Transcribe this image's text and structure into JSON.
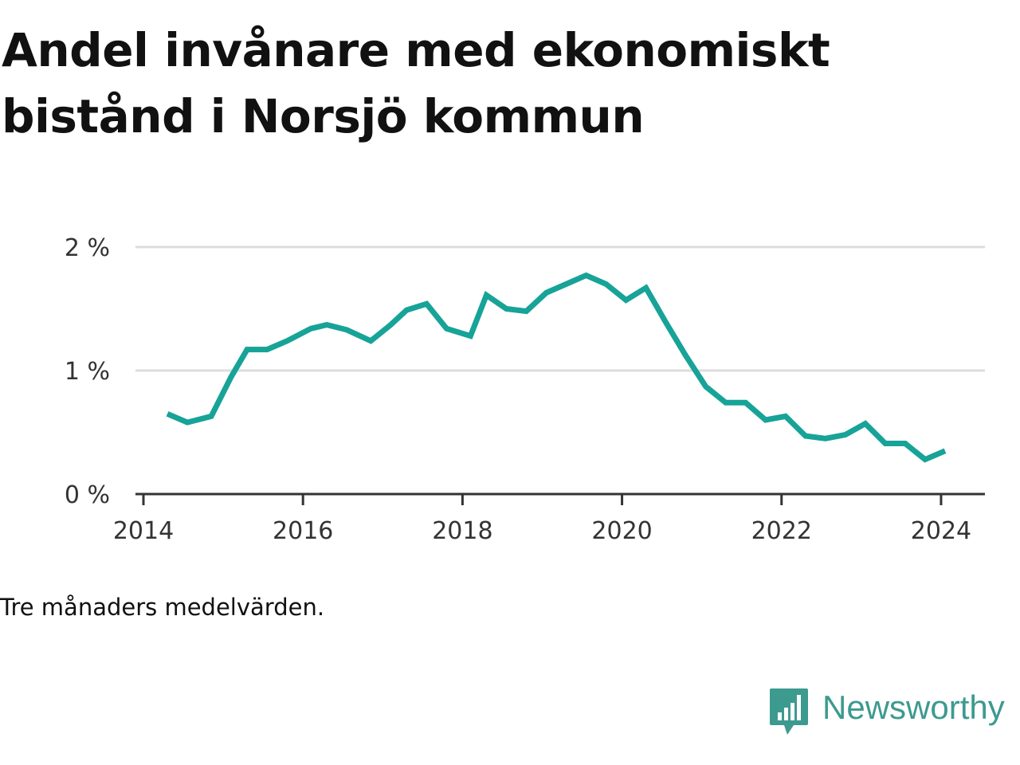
{
  "title": "Andel invånare med ekonomiskt bistånd i Norsjö kommun",
  "note": "Tre månaders medelvärden.",
  "brand": {
    "name": "Newsworthy",
    "icon": "newsworthy-logo-icon",
    "color": "#3d9a8f"
  },
  "colors": {
    "line": "#17a398",
    "grid": "#dddddd",
    "axis": "#333333"
  },
  "chart_data": {
    "type": "line",
    "title": "Andel invånare med ekonomiskt bistånd i Norsjö kommun",
    "xlabel": "",
    "ylabel": "",
    "xlim": [
      2013.9,
      2024.55
    ],
    "ylim": [
      0,
      2
    ],
    "grid": true,
    "legend": "none",
    "x_ticks": [
      2014,
      2016,
      2018,
      2020,
      2022,
      2024
    ],
    "x_tick_labels": [
      "2014",
      "2016",
      "2018",
      "2020",
      "2022",
      "2024"
    ],
    "y_ticks": [
      0,
      1,
      2
    ],
    "y_tick_labels": [
      "0 %",
      "1 %",
      "2 %"
    ],
    "series": [
      {
        "x": [
          2014.3,
          2014.55,
          2014.85,
          2015.1,
          2015.3,
          2015.55,
          2015.8,
          2016.1,
          2016.3,
          2016.55,
          2016.85,
          2017.1,
          2017.3,
          2017.55,
          2017.8,
          2018.1,
          2018.3,
          2018.55,
          2018.8,
          2019.05,
          2019.3,
          2019.55,
          2019.8,
          2020.05,
          2020.3,
          2020.55,
          2020.8,
          2021.05,
          2021.3,
          2021.55,
          2021.8,
          2022.05,
          2022.3,
          2022.55,
          2022.8,
          2023.05,
          2023.3,
          2023.55,
          2023.8,
          2024.05
        ],
        "values": [
          0.65,
          0.58,
          0.63,
          0.95,
          1.17,
          1.17,
          1.24,
          1.34,
          1.37,
          1.33,
          1.24,
          1.37,
          1.49,
          1.54,
          1.34,
          1.28,
          1.61,
          1.5,
          1.48,
          1.63,
          1.7,
          1.77,
          1.7,
          1.57,
          1.67,
          1.39,
          1.12,
          0.87,
          0.74,
          0.74,
          0.6,
          0.63,
          0.47,
          0.45,
          0.48,
          0.57,
          0.41,
          0.41,
          0.28,
          0.35
        ]
      }
    ]
  }
}
